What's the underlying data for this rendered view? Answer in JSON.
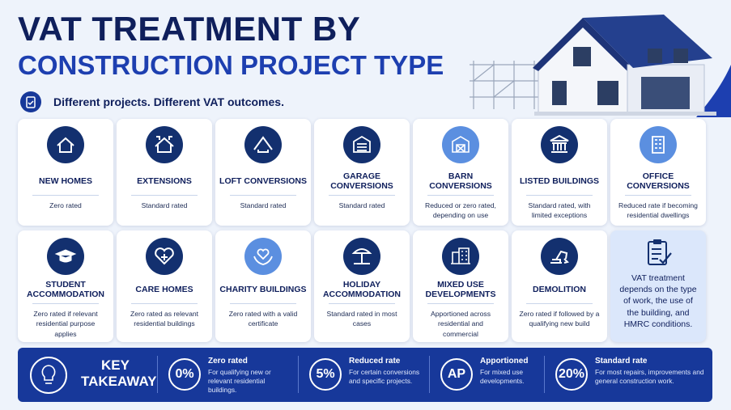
{
  "header": {
    "title_line1": "VAT TREATMENT BY",
    "title_line2": "CONSTRUCTION PROJECT TYPE",
    "subtitle": "Different projects. Different VAT outcomes."
  },
  "cards": [
    {
      "title": "NEW HOMES",
      "text": "Zero rated"
    },
    {
      "title": "EXTENSIONS",
      "text": "Standard rated"
    },
    {
      "title": "LOFT CONVERSIONS",
      "text": "Standard rated"
    },
    {
      "title": "GARAGE CONVERSIONS",
      "text": "Standard rated"
    },
    {
      "title": "BARN CONVERSIONS",
      "text": "Reduced or zero rated, depending on use"
    },
    {
      "title": "LISTED BUILDINGS",
      "text": "Standard rated, with limited exceptions"
    },
    {
      "title": "OFFICE CONVERSIONS",
      "text": "Reduced rate if becoming residential dwellings"
    },
    {
      "title": "STUDENT ACCOMMODATION",
      "text": "Zero rated if relevant residential purpose applies"
    },
    {
      "title": "CARE HOMES",
      "text": "Zero rated as relevant residential buildings"
    },
    {
      "title": "CHARITY BUILDINGS",
      "text": "Zero rated with a valid certificate"
    },
    {
      "title": "HOLIDAY ACCOMMODATION",
      "text": "Standard rated in most cases"
    },
    {
      "title": "MIXED USE DEVELOPMENTS",
      "text": "Apportioned across residential and commercial"
    },
    {
      "title": "DEMOLITION",
      "text": "Zero rated if followed by a qualifying new build"
    }
  ],
  "note": "VAT treatment depends on the type of work, the use of the building, and HMRC conditions.",
  "takeaway": {
    "label": "KEY TAKEAWAY",
    "items": [
      {
        "badge": "0%",
        "title": "Zero rated",
        "text": "For qualifying new or relevant residential buildings."
      },
      {
        "badge": "5%",
        "title": "Reduced rate",
        "text": "For certain conversions and specific projects."
      },
      {
        "badge": "AP",
        "title": "Apportioned",
        "text": "For mixed use developments."
      },
      {
        "badge": "20%",
        "title": "Standard rate",
        "text": "For most repairs, improvements and general construction work."
      }
    ]
  }
}
